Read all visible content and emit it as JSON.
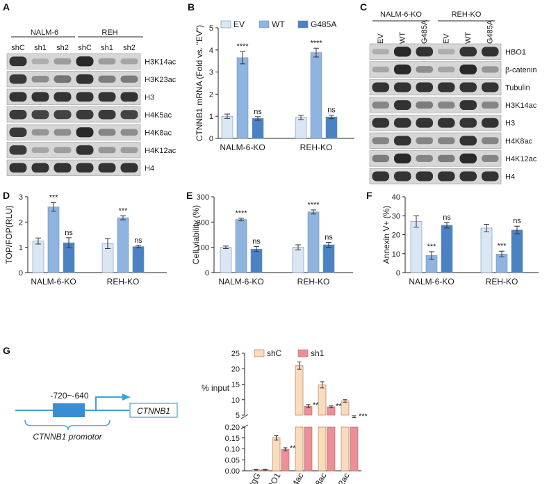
{
  "colors": {
    "ev": "#dbe6f3",
    "wt": "#8fb4e0",
    "g485a": "#4a82c4",
    "shC": "#f9dcbc",
    "sh1": "#ec8f99",
    "line": "#3da3dc",
    "box": "#3a8dd2",
    "blot": "#1a1a1a"
  },
  "panel_labels": {
    "a": "A",
    "b": "B",
    "c": "C",
    "d": "D",
    "e": "E",
    "f": "F",
    "g": "G"
  },
  "blot_a": {
    "groups": [
      "NALM-6",
      "REH"
    ],
    "lanes": [
      "shC",
      "sh1",
      "sh2",
      "shC",
      "sh1",
      "sh2"
    ],
    "rows": [
      {
        "label": "H3K14ac",
        "levels": [
          0.9,
          0.15,
          0.25,
          0.95,
          0.25,
          0.2
        ]
      },
      {
        "label": "H3K23ac",
        "levels": [
          0.85,
          0.35,
          0.5,
          0.9,
          0.45,
          0.45
        ]
      },
      {
        "label": "H3",
        "levels": [
          0.9,
          0.9,
          0.9,
          0.9,
          0.9,
          0.9
        ]
      },
      {
        "label": "H4K5ac",
        "levels": [
          0.85,
          0.8,
          0.8,
          0.85,
          0.85,
          0.8
        ]
      },
      {
        "label": "H4K8ac",
        "levels": [
          0.85,
          0.3,
          0.35,
          0.95,
          0.4,
          0.35
        ]
      },
      {
        "label": "H4K12ac",
        "levels": [
          0.85,
          0.2,
          0.25,
          0.9,
          0.3,
          0.25
        ]
      },
      {
        "label": "H4",
        "levels": [
          0.9,
          0.9,
          0.9,
          0.9,
          0.9,
          0.9
        ]
      }
    ]
  },
  "blot_c": {
    "groups": [
      "NALM-6-KO",
      "REH-KO"
    ],
    "lanes": [
      "EV",
      "WT",
      "G485A",
      "EV",
      "WT",
      "G485A"
    ],
    "rows": [
      {
        "label": "HBO1",
        "levels": [
          0.15,
          0.95,
          0.9,
          0.15,
          0.9,
          0.9
        ]
      },
      {
        "label": "β-catenin",
        "levels": [
          0.2,
          0.95,
          0.35,
          0.2,
          0.95,
          0.3
        ]
      },
      {
        "label": "Tubulin",
        "levels": [
          0.9,
          0.9,
          0.9,
          0.9,
          0.9,
          0.9
        ]
      },
      {
        "label": "H3K14ac",
        "levels": [
          0.4,
          0.9,
          0.45,
          0.4,
          0.9,
          0.4
        ]
      },
      {
        "label": "H3",
        "levels": [
          0.9,
          0.9,
          0.9,
          0.9,
          0.9,
          0.9
        ]
      },
      {
        "label": "H4K8ac",
        "levels": [
          0.4,
          0.9,
          0.4,
          0.4,
          0.9,
          0.4
        ]
      },
      {
        "label": "H4K12ac",
        "levels": [
          0.45,
          0.95,
          0.4,
          0.45,
          0.95,
          0.4
        ]
      },
      {
        "label": "H4",
        "levels": [
          0.9,
          0.9,
          0.9,
          0.9,
          0.9,
          0.9
        ]
      }
    ]
  },
  "chart_data": [
    {
      "id": "B",
      "type": "bar",
      "ylabel": "CTNNB1 mRNA (Fold vs. \"EV\")",
      "ylim": [
        0,
        5
      ],
      "yticks": [
        0,
        1,
        2,
        3,
        4,
        5
      ],
      "categories": [
        "NALM-6-KO",
        "REH-KO"
      ],
      "series": [
        {
          "name": "EV",
          "values": [
            1.0,
            0.95
          ],
          "errors": [
            0.1,
            0.1
          ]
        },
        {
          "name": "WT",
          "values": [
            3.65,
            3.88
          ],
          "errors": [
            0.28,
            0.2
          ]
        },
        {
          "name": "G485A",
          "values": [
            0.9,
            0.97
          ],
          "errors": [
            0.08,
            0.08
          ]
        }
      ],
      "annotations": [
        [
          "",
          "****",
          "ns"
        ],
        [
          "",
          "****",
          "ns"
        ]
      ],
      "legend": "top"
    },
    {
      "id": "D",
      "type": "bar",
      "ylabel": "TOP/FOP(RLU)",
      "ylim": [
        0,
        3
      ],
      "yticks": [
        0,
        1,
        2,
        3
      ],
      "categories": [
        "NALM-6-KO",
        "REH-KO"
      ],
      "series": [
        {
          "name": "EV",
          "values": [
            1.25,
            1.15
          ],
          "errors": [
            0.12,
            0.2
          ]
        },
        {
          "name": "WT",
          "values": [
            2.6,
            2.17
          ],
          "errors": [
            0.17,
            0.08
          ]
        },
        {
          "name": "G485A",
          "values": [
            1.18,
            1.03
          ],
          "errors": [
            0.2,
            0.05
          ]
        }
      ],
      "annotations": [
        [
          "",
          "***",
          "ns"
        ],
        [
          "",
          "***",
          "ns"
        ]
      ]
    },
    {
      "id": "E",
      "type": "bar",
      "ylabel": "Cell viability (%)",
      "ylim": [
        0,
        300
      ],
      "yticks": [
        0,
        100,
        200,
        300
      ],
      "categories": [
        "NALM-6-KO",
        "REH-KO"
      ],
      "series": [
        {
          "name": "EV",
          "values": [
            100,
            100
          ],
          "errors": [
            5,
            10
          ]
        },
        {
          "name": "WT",
          "values": [
            210,
            240
          ],
          "errors": [
            5,
            8
          ]
        },
        {
          "name": "G485A",
          "values": [
            93,
            110
          ],
          "errors": [
            10,
            10
          ]
        }
      ],
      "annotations": [
        [
          "",
          "****",
          "ns"
        ],
        [
          "",
          "****",
          "ns"
        ]
      ]
    },
    {
      "id": "F",
      "type": "bar",
      "ylabel": "Annexin V+ (%)",
      "ylim": [
        0,
        40
      ],
      "yticks": [
        0,
        10,
        20,
        30,
        40
      ],
      "categories": [
        "NALM-6-KO",
        "REH-KO"
      ],
      "series": [
        {
          "name": "EV",
          "values": [
            27,
            23.5
          ],
          "errors": [
            3,
            2
          ]
        },
        {
          "name": "WT",
          "values": [
            9,
            9.8
          ],
          "errors": [
            2,
            1.5
          ]
        },
        {
          "name": "G485A",
          "values": [
            25,
            22.5
          ],
          "errors": [
            1.5,
            2
          ]
        }
      ],
      "annotations": [
        [
          "",
          "***",
          "ns"
        ],
        [
          "",
          "***",
          "ns"
        ]
      ]
    },
    {
      "id": "G",
      "type": "bar",
      "ylabel": "% input",
      "y_broken": true,
      "ylim_low": [
        0,
        0.2
      ],
      "yticks_low": [
        0.0,
        0.05,
        0.1,
        0.15,
        0.2
      ],
      "ylim_high": [
        5,
        25
      ],
      "yticks_high": [
        5,
        10,
        15,
        20,
        25
      ],
      "categories": [
        "IgG",
        "HBO1",
        "H3K14ac",
        "H4K8ac",
        "H4K12ac"
      ],
      "series": [
        {
          "name": "shC",
          "values": [
            0.005,
            0.15,
            21,
            14.8,
            9.6
          ],
          "errors": [
            0.002,
            0.01,
            1.2,
            1.0,
            0.4
          ]
        },
        {
          "name": "sh1",
          "values": [
            0.005,
            0.098,
            7.9,
            7.7,
            4.5
          ],
          "errors": [
            0.002,
            0.007,
            0.5,
            0.3,
            0.3
          ]
        }
      ],
      "annotations": [
        [
          "",
          ""
        ],
        [
          "",
          "****"
        ],
        [
          "",
          "****"
        ],
        [
          "",
          "***"
        ],
        [
          "",
          "***"
        ]
      ],
      "legend": "top"
    }
  ],
  "schematic": {
    "region": "-720~-640",
    "gene": "CTNNB1",
    "promoter_label": "CTNNB1 promotor"
  }
}
